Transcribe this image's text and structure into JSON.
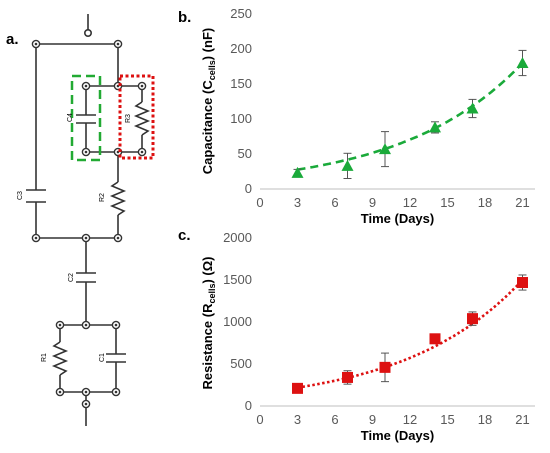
{
  "panels": {
    "a": "a.",
    "b": "b.",
    "c": "c."
  },
  "circuit": {
    "labels": {
      "C4": "C4",
      "R3": "R3",
      "C3": "C3",
      "R2": "R2",
      "C2": "C2",
      "R1": "R1",
      "C1": "C1"
    },
    "colors": {
      "wire": "#333333",
      "green_box": "#22aa33",
      "red_box": "#dd1111"
    }
  },
  "chart_data": [
    {
      "type": "scatter",
      "panel": "b.",
      "xlabel": "Time (Days)",
      "ylabel_main": "Capacitance (C",
      "ylabel_sub": "cells",
      "ylabel_end": ") (nF)",
      "xlim": [
        0,
        22
      ],
      "ylim": [
        0,
        250
      ],
      "x_ticks": [
        0,
        3,
        6,
        9,
        12,
        15,
        18,
        21
      ],
      "y_ticks": [
        0,
        50,
        100,
        150,
        200,
        250
      ],
      "marker": "triangle",
      "color": "#1aaa3a",
      "line_style": "dashed",
      "x": [
        3,
        7,
        10,
        14,
        17,
        21
      ],
      "y": [
        23,
        33,
        57,
        88,
        115,
        180
      ],
      "err_low": [
        5,
        18,
        25,
        8,
        13,
        18
      ],
      "err_high": [
        5,
        18,
        25,
        8,
        13,
        18
      ],
      "trend": {
        "a": 20.24,
        "b": 0.104
      }
    },
    {
      "type": "scatter",
      "panel": "c.",
      "xlabel": "Time (Days)",
      "ylabel_main": "Resistance (R",
      "ylabel_sub": "cells",
      "ylabel_end": ") (Ω)",
      "xlim": [
        0,
        22
      ],
      "ylim": [
        0,
        2000
      ],
      "x_ticks": [
        0,
        3,
        6,
        9,
        12,
        15,
        18,
        21
      ],
      "y_ticks": [
        0,
        500,
        1000,
        1500,
        2000
      ],
      "marker": "square",
      "color": "#dd1111",
      "line_style": "dotted",
      "x": [
        3,
        7,
        10,
        14,
        17,
        21
      ],
      "y": [
        210,
        340,
        460,
        800,
        1040,
        1470
      ],
      "err_low": [
        40,
        80,
        170,
        40,
        80,
        90
      ],
      "err_high": [
        40,
        80,
        170,
        40,
        80,
        90
      ],
      "trend": {
        "a": 158.7,
        "b": 0.107
      }
    }
  ]
}
